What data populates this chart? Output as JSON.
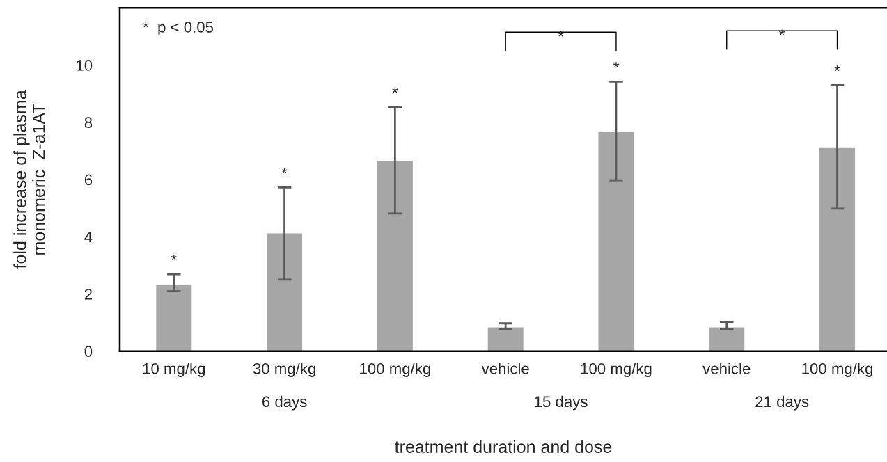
{
  "chart_data": {
    "type": "bar",
    "categories": [
      "10 mg/kg",
      "30 mg/kg",
      "100 mg/kg",
      "vehicle",
      "100 mg/kg",
      "vehicle",
      "100 mg/kg"
    ],
    "values": [
      2.33,
      4.13,
      6.67,
      0.85,
      7.67,
      0.85,
      7.14
    ],
    "errors": [
      [
        2.09,
        2.69
      ],
      [
        2.5,
        5.72
      ],
      [
        4.81,
        8.54
      ],
      [
        0.78,
        0.97
      ],
      [
        5.97,
        9.42
      ],
      [
        0.78,
        1.02
      ],
      [
        4.98,
        9.3
      ]
    ],
    "color": "#a6a6a6",
    "xlabel": "treatment duration and dose",
    "ylabel": "fold increase of plasma\nmonomeric  Z-a1AT",
    "ylim": [
      0,
      12
    ],
    "yticks": [
      0,
      2,
      4,
      6,
      8,
      10
    ],
    "grid": false,
    "annotations": [
      "*  p < 0.05",
      "*",
      "*",
      "*",
      "*",
      "*",
      "*",
      "*",
      "6 days",
      "15 days",
      "21 days"
    ]
  }
}
